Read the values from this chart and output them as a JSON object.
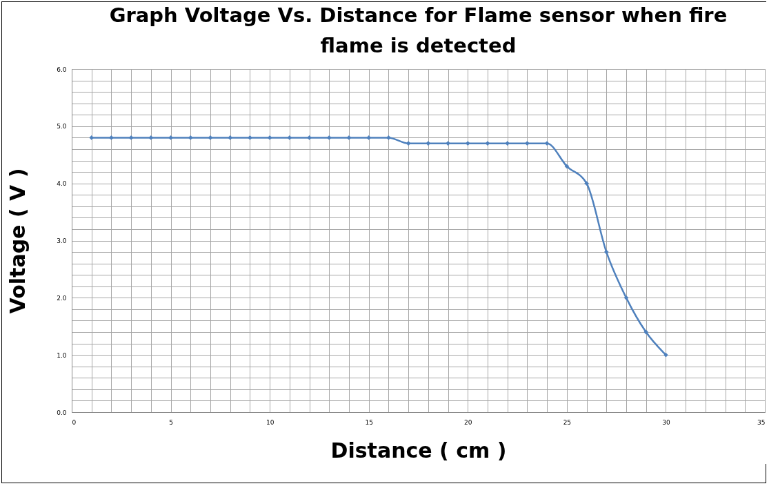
{
  "chart_data": {
    "type": "line",
    "title": "Graph Voltage Vs. Distance for Flame sensor when fire flame is detected",
    "xlabel": "Distance ( cm )",
    "ylabel": "Voltage ( V )",
    "x": [
      1,
      2,
      3,
      4,
      5,
      6,
      7,
      8,
      9,
      10,
      11,
      12,
      13,
      14,
      15,
      16,
      17,
      18,
      19,
      20,
      21,
      22,
      23,
      24,
      25,
      26,
      27,
      28,
      29,
      30
    ],
    "series": [
      {
        "color": "#4f81bd",
        "values": [
          4.8,
          4.8,
          4.8,
          4.8,
          4.8,
          4.8,
          4.8,
          4.8,
          4.8,
          4.8,
          4.8,
          4.8,
          4.8,
          4.8,
          4.8,
          4.8,
          4.7,
          4.7,
          4.7,
          4.7,
          4.7,
          4.7,
          4.7,
          4.7,
          4.3,
          4.0,
          2.8,
          2.0,
          1.4,
          1.0
        ]
      }
    ],
    "xlim": [
      0,
      35
    ],
    "xticks": [
      0,
      {
        "value": 1,
        "label": null
      },
      {
        "value": 2,
        "label": null
      },
      {
        "value": 3,
        "label": null
      },
      {
        "value": 4,
        "label": null
      },
      5,
      {
        "value": 6,
        "label": null
      },
      {
        "value": 7,
        "label": null
      },
      {
        "value": 8,
        "label": null
      },
      {
        "value": 9,
        "label": null
      },
      10,
      {
        "value": 11,
        "label": null
      },
      {
        "value": 12,
        "label": null
      },
      {
        "value": 13,
        "label": null
      },
      {
        "value": 14,
        "label": null
      },
      15,
      {
        "value": 16,
        "label": null
      },
      {
        "value": 17,
        "label": null
      },
      {
        "value": 18,
        "label": null
      },
      {
        "value": 19,
        "label": null
      },
      20,
      {
        "value": 21,
        "label": null
      },
      {
        "value": 22,
        "label": null
      },
      {
        "value": 23,
        "label": null
      },
      {
        "value": 24,
        "label": null
      },
      25,
      {
        "value": 26,
        "label": null
      },
      {
        "value": 27,
        "label": null
      },
      {
        "value": 28,
        "label": null
      },
      {
        "value": 29,
        "label": null
      },
      30,
      {
        "value": 31,
        "label": null
      },
      {
        "value": 32,
        "label": null
      },
      {
        "value": 33,
        "label": null
      },
      {
        "value": 34,
        "label": null
      },
      35
    ],
    "ylim": [
      0,
      6
    ],
    "yticks": [
      {
        "value": 0,
        "label": "0.0"
      },
      {
        "value": 0.2,
        "label": null
      },
      {
        "value": 0.4,
        "label": null
      },
      {
        "value": 0.6,
        "label": null
      },
      {
        "value": 0.8,
        "label": null
      },
      {
        "value": 1,
        "label": "1.0"
      },
      {
        "value": 1.2,
        "label": null
      },
      {
        "value": 1.4,
        "label": null
      },
      {
        "value": 1.6,
        "label": null
      },
      {
        "value": 1.8,
        "label": null
      },
      {
        "value": 2,
        "label": "2.0"
      },
      {
        "value": 2.2,
        "label": null
      },
      {
        "value": 2.4,
        "label": null
      },
      {
        "value": 2.6,
        "label": null
      },
      {
        "value": 2.8,
        "label": null
      },
      {
        "value": 3,
        "label": "3.0"
      },
      {
        "value": 3.2,
        "label": null
      },
      {
        "value": 3.4,
        "label": null
      },
      {
        "value": 3.6,
        "label": null
      },
      {
        "value": 3.8,
        "label": null
      },
      {
        "value": 4,
        "label": "4.0"
      },
      {
        "value": 4.2,
        "label": null
      },
      {
        "value": 4.4,
        "label": null
      },
      {
        "value": 4.6,
        "label": null
      },
      {
        "value": 4.8,
        "label": null
      },
      {
        "value": 5,
        "label": "5.0"
      },
      {
        "value": 5.2,
        "label": null
      },
      {
        "value": 5.4,
        "label": null
      },
      {
        "value": 5.6,
        "label": null
      },
      {
        "value": 5.8,
        "label": null
      },
      {
        "value": 6,
        "label": "6.0"
      }
    ],
    "grid": true,
    "marker": "diamond",
    "line_style": "solid"
  }
}
